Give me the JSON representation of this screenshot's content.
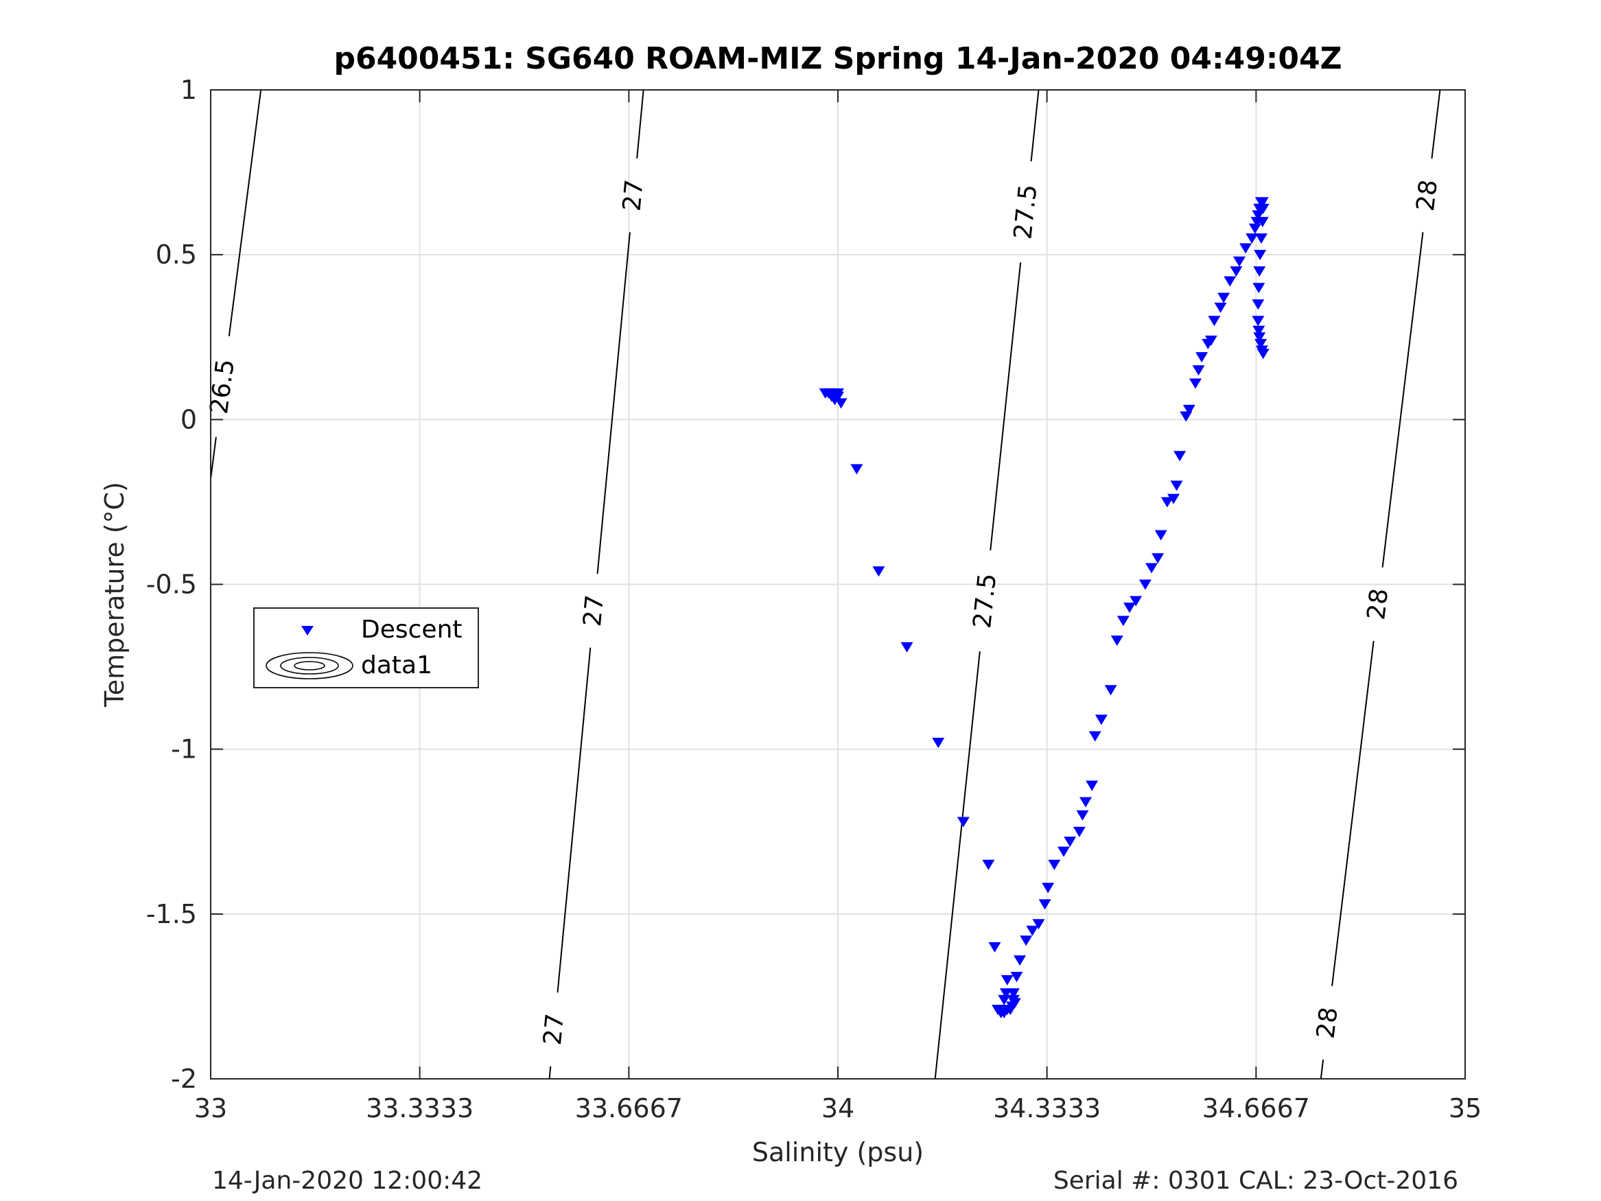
{
  "chart_data": {
    "type": "scatter",
    "title": "p6400451: SG640 ROAM-MIZ Spring 14-Jan-2020 04:49:04Z",
    "xlabel": "Salinity (psu)",
    "ylabel": "Temperature (°C)",
    "xlim": [
      33,
      35
    ],
    "ylim": [
      -2,
      1
    ],
    "xticks": [
      33,
      33.3333,
      33.6667,
      34,
      34.3333,
      34.6667,
      35
    ],
    "xtick_labels": [
      "33",
      "33.3333",
      "33.6667",
      "34",
      "34.3333",
      "34.6667",
      "35"
    ],
    "yticks": [
      -2,
      -1.5,
      -1,
      -0.5,
      0,
      0.5,
      1
    ],
    "ytick_labels": [
      "-2",
      "-1.5",
      "-1",
      "-0.5",
      "0",
      "0.5",
      "1"
    ],
    "grid": true,
    "legend_position": "left-middle",
    "legend": [
      "Descent",
      "data1"
    ],
    "series": [
      {
        "name": "Descent",
        "marker": "triangle-down",
        "color": "#0000ff",
        "x": [
          33.98,
          33.985,
          33.99,
          33.995,
          33.99,
          34.0,
          34.005,
          34.0,
          34.03,
          34.065,
          34.11,
          34.16,
          34.2,
          34.24,
          34.25,
          34.255,
          34.26,
          34.265,
          34.27,
          34.275,
          34.278,
          34.282,
          34.28,
          34.27,
          34.268,
          34.265,
          34.28,
          34.285,
          34.29,
          34.3,
          34.31,
          34.32,
          34.33,
          34.335,
          34.345,
          34.36,
          34.37,
          34.385,
          34.39,
          34.395,
          34.405,
          34.41,
          34.42,
          34.435,
          34.445,
          34.455,
          34.465,
          34.475,
          34.49,
          34.5,
          34.51,
          34.515,
          34.525,
          34.535,
          34.54,
          34.545,
          34.555,
          34.56,
          34.57,
          34.575,
          34.58,
          34.59,
          34.595,
          34.6,
          34.61,
          34.615,
          34.625,
          34.635,
          34.64,
          34.65,
          34.66,
          34.665,
          34.668,
          34.67,
          34.672,
          34.675,
          34.677,
          34.678,
          34.677,
          34.675,
          34.673,
          34.672,
          34.671,
          34.67,
          34.67,
          34.671,
          34.672,
          34.674,
          34.676,
          34.678
        ],
        "y": [
          0.08,
          0.08,
          0.07,
          0.06,
          0.08,
          0.07,
          0.05,
          0.08,
          -0.15,
          -0.46,
          -0.69,
          -0.98,
          -1.22,
          -1.35,
          -1.6,
          -1.79,
          -1.8,
          -1.8,
          -1.79,
          -1.79,
          -1.78,
          -1.77,
          -1.74,
          -1.7,
          -1.74,
          -1.76,
          -1.76,
          -1.69,
          -1.64,
          -1.58,
          -1.55,
          -1.53,
          -1.47,
          -1.42,
          -1.35,
          -1.31,
          -1.28,
          -1.25,
          -1.2,
          -1.16,
          -1.11,
          -0.96,
          -0.91,
          -0.82,
          -0.67,
          -0.61,
          -0.57,
          -0.55,
          -0.5,
          -0.45,
          -0.42,
          -0.35,
          -0.25,
          -0.24,
          -0.2,
          -0.11,
          0.01,
          0.03,
          0.11,
          0.15,
          0.19,
          0.23,
          0.24,
          0.3,
          0.34,
          0.37,
          0.42,
          0.45,
          0.48,
          0.52,
          0.55,
          0.58,
          0.6,
          0.62,
          0.64,
          0.66,
          0.66,
          0.64,
          0.6,
          0.55,
          0.5,
          0.45,
          0.4,
          0.35,
          0.3,
          0.27,
          0.25,
          0.23,
          0.21,
          0.2
        ]
      },
      {
        "name": "data1",
        "type": "contour",
        "color": "#000000",
        "lines": [
          {
            "level_label": "26.5",
            "x": [
              33.0,
              33.08
            ],
            "y": [
              -0.18,
              1.0
            ],
            "label_at": 0.1
          },
          {
            "level_label": "27",
            "x": [
              33.54,
              33.69
            ],
            "y": [
              -2.0,
              1.0
            ],
            "label_at": [
              -1.85,
              -0.58,
              0.68
            ]
          },
          {
            "level_label": "27.5",
            "x": [
              34.155,
              34.32
            ],
            "y": [
              -2.0,
              1.0
            ],
            "label_at": [
              -0.55,
              0.63
            ]
          },
          {
            "level_label": "28",
            "x": [
              34.77,
              34.96
            ],
            "y": [
              -2.0,
              1.0
            ],
            "label_at": [
              -1.83,
              -0.56,
              0.68
            ]
          }
        ]
      }
    ]
  },
  "footer": {
    "left": "14-Jan-2020 12:00:42",
    "right": "Serial #: 0301  CAL: 23-Oct-2016"
  }
}
